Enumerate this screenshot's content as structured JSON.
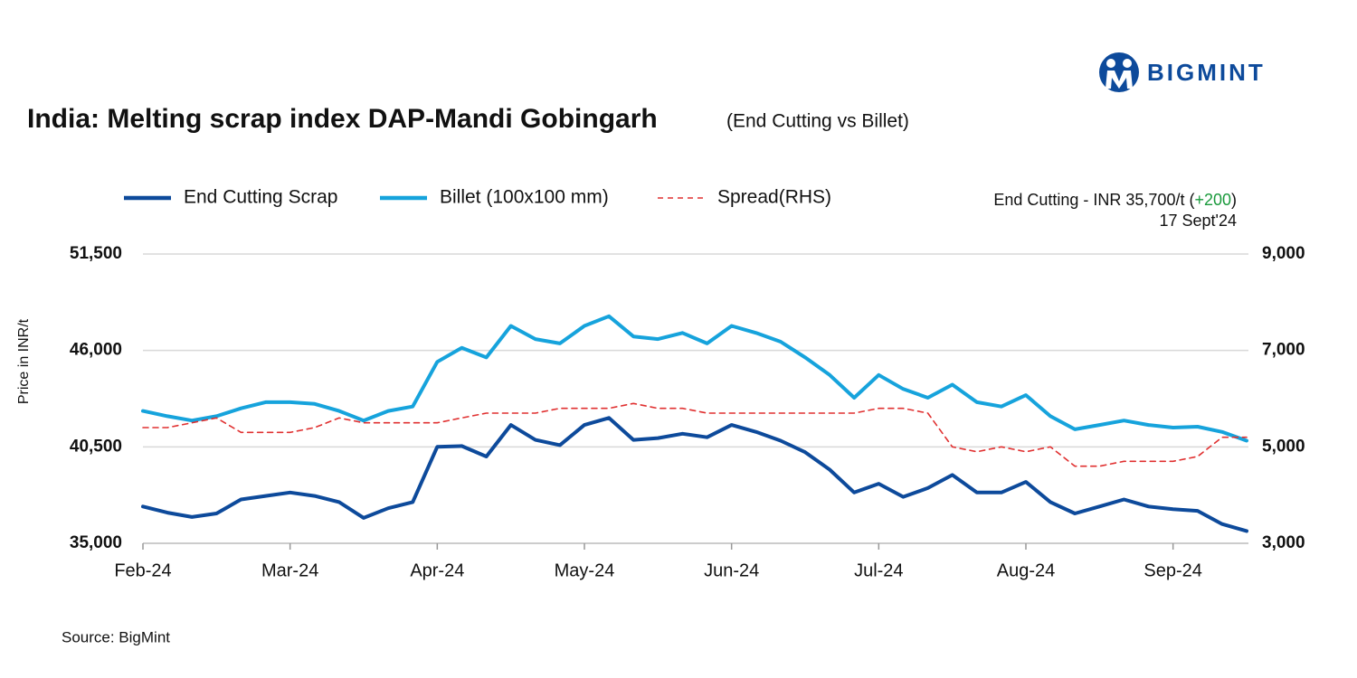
{
  "chart_data": {
    "type": "line",
    "brand": "BIGMINT",
    "title": "India: Melting scrap index DAP-Mandi Gobingarh",
    "subtitle": "(End Cutting vs Billet)",
    "y_label": "Price in INR/t",
    "source": "Source: BigMint",
    "annotation": {
      "prefix": "End Cutting - INR 35,700/t (",
      "change": "+200",
      "change_color": "#1a9a3c",
      "suffix": ")",
      "date": "17 Sept'24"
    },
    "categories": [
      "Feb-24",
      null,
      null,
      null,
      null,
      null,
      "Mar-24",
      null,
      null,
      null,
      null,
      null,
      "Apr-24",
      null,
      null,
      null,
      null,
      null,
      "May-24",
      null,
      null,
      null,
      null,
      null,
      "Jun-24",
      null,
      null,
      null,
      null,
      null,
      "Jul-24",
      null,
      null,
      null,
      null,
      null,
      "Aug-24",
      null,
      null,
      null,
      null,
      null,
      "Sep-24",
      null,
      null,
      null
    ],
    "series": [
      {
        "name": "End Cutting Scrap",
        "color": "#0d4a9b",
        "style": "solid",
        "axis": "y",
        "values": [
          37100,
          36750,
          36500,
          36700,
          37500,
          37700,
          37900,
          37700,
          37350,
          36450,
          37000,
          37350,
          40500,
          40550,
          39950,
          41750,
          40900,
          40600,
          41750,
          42150,
          40900,
          41000,
          41250,
          41050,
          41750,
          41350,
          40850,
          40200,
          39200,
          37900,
          38400,
          37650,
          38150,
          38900,
          37900,
          37900,
          38500,
          37350,
          36700,
          37100,
          37500,
          37100,
          36950,
          36850,
          36100,
          35700
        ]
      },
      {
        "name": "Billet (100x100 mm)",
        "color": "#16a3dc",
        "style": "solid",
        "axis": "y",
        "values": [
          42550,
          42250,
          42000,
          42250,
          42700,
          43050,
          43050,
          42950,
          42550,
          42000,
          42550,
          42800,
          45350,
          46150,
          45600,
          47400,
          46650,
          46400,
          47400,
          47950,
          46800,
          46650,
          47000,
          46400,
          47400,
          47000,
          46500,
          45600,
          44600,
          43300,
          44600,
          43800,
          43300,
          44050,
          43050,
          42800,
          43450,
          42250,
          41500,
          41750,
          42000,
          41750,
          41600,
          41650,
          41350,
          40850
        ]
      },
      {
        "name": "Spread(RHS)",
        "color": "#e03030",
        "style": "dashed",
        "axis": "y2",
        "values": [
          5400,
          5400,
          5500,
          5600,
          5300,
          5300,
          5300,
          5400,
          5600,
          5500,
          5500,
          5500,
          5500,
          5600,
          5700,
          5700,
          5700,
          5800,
          5800,
          5800,
          5900,
          5800,
          5800,
          5700,
          5700,
          5700,
          5700,
          5700,
          5700,
          5700,
          5800,
          5800,
          5700,
          5000,
          4900,
          5000,
          4900,
          5000,
          4600,
          4600,
          4700,
          4700,
          4700,
          4800,
          5200,
          5200
        ]
      }
    ],
    "ylim": [
      35000,
      51500
    ],
    "yticks": [
      {
        "value": 35000,
        "label": "35,000"
      },
      {
        "value": 40500,
        "label": "40,500"
      },
      {
        "value": 46000,
        "label": "46,000"
      },
      {
        "value": 51500,
        "label": "51,500"
      }
    ],
    "y2lim": [
      3000,
      9000
    ],
    "y2ticks": [
      {
        "value": 3000,
        "label": "3,000"
      },
      {
        "value": 5000,
        "label": "5,000"
      },
      {
        "value": 7000,
        "label": "7,000"
      },
      {
        "value": 9000,
        "label": "9,000"
      }
    ],
    "grid": true
  }
}
